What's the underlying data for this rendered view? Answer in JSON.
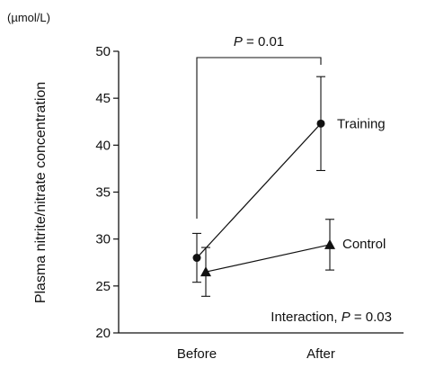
{
  "chart_data": {
    "type": "line",
    "unit_label": "(µmol/L)",
    "ylabel": "Plasma nitrite/nitrate concentration",
    "xlabel": "",
    "categories": [
      "Before",
      "After"
    ],
    "ylim": [
      20,
      50
    ],
    "yticks": [
      20,
      25,
      30,
      35,
      40,
      45,
      50
    ],
    "series": [
      {
        "name": "Training",
        "marker": "circle",
        "values": [
          28.0,
          42.3
        ],
        "error": [
          2.6,
          5.0
        ]
      },
      {
        "name": "Control",
        "marker": "triangle",
        "values": [
          26.5,
          29.4
        ],
        "error": [
          2.6,
          2.7
        ]
      }
    ],
    "significance_bracket": {
      "text": "P = 0.01",
      "from": "Before",
      "to": "After",
      "series": "Training"
    },
    "annotation": "Interaction, P = 0.03",
    "grid": false,
    "legend": "none"
  }
}
